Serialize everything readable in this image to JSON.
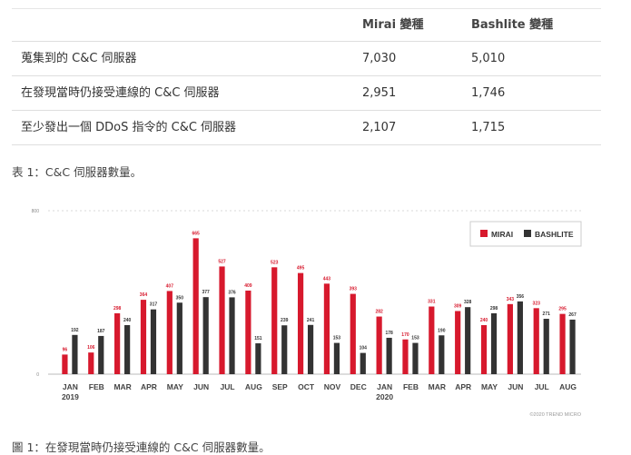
{
  "table": {
    "headers": [
      "",
      "Mirai 變種",
      "Bashlite 變種"
    ],
    "rows": [
      {
        "label": "蒐集到的 C&C 伺服器",
        "mirai": "7,030",
        "bashlite": "5,010"
      },
      {
        "label": "在發現當時仍接受連線的 C&C 伺服器",
        "mirai": "2,951",
        "bashlite": "1,746"
      },
      {
        "label": "至少發出一個 DDoS 指令的 C&C 伺服器",
        "mirai": "2,107",
        "bashlite": "1,715"
      }
    ],
    "caption": "表 1：C&C 伺服器數量。"
  },
  "chart_data": {
    "type": "bar",
    "categories": [
      "JAN",
      "FEB",
      "MAR",
      "APR",
      "MAY",
      "JUN",
      "JUL",
      "AUG",
      "SEP",
      "OCT",
      "NOV",
      "DEC",
      "JAN",
      "FEB",
      "MAR",
      "APR",
      "MAY",
      "JUN",
      "JUL",
      "AUG"
    ],
    "year_labels": [
      {
        "index": 0,
        "label": "2019"
      },
      {
        "index": 12,
        "label": "2020"
      }
    ],
    "series": [
      {
        "name": "MIRAI",
        "color": "#d7192d",
        "values": [
          96,
          106,
          298,
          364,
          407,
          665,
          527,
          409,
          523,
          495,
          443,
          393,
          282,
          170,
          331,
          309,
          240,
          343,
          323,
          295
        ]
      },
      {
        "name": "BASHLITE",
        "color": "#333333",
        "values": [
          192,
          187,
          240,
          317,
          350,
          377,
          376,
          151,
          239,
          241,
          153,
          104,
          178,
          153,
          190,
          328,
          298,
          356,
          271,
          267
        ]
      }
    ],
    "ylim": [
      0,
      800
    ],
    "yticks": [
      0,
      800
    ],
    "grid": true,
    "legend": "top-right",
    "watermark": "©2020 TREND MICRO",
    "caption": "圖 1：在發現當時仍接受連線的 C&C 伺服器數量。"
  }
}
